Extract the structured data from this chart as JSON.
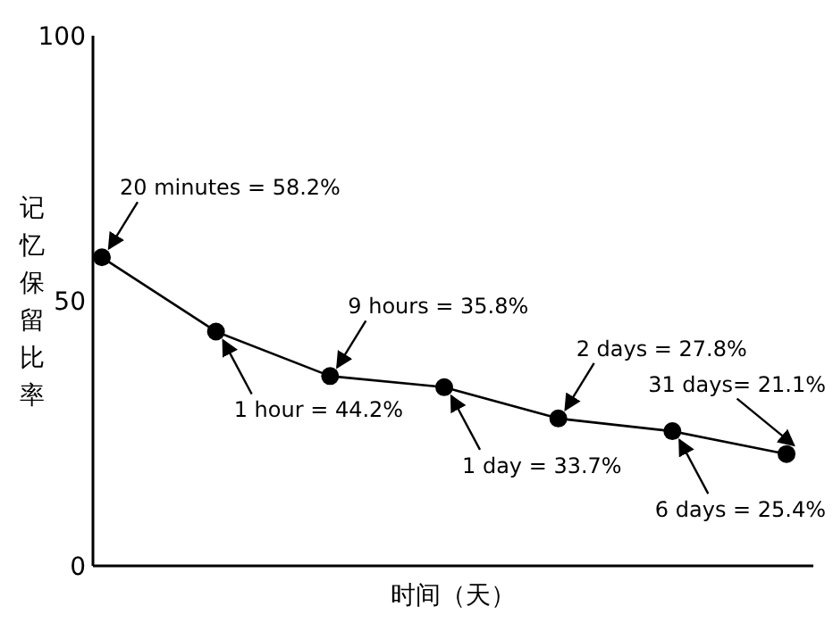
{
  "chart_data": {
    "type": "line",
    "xlabel": "时间（天）",
    "ylabel": "记忆保留比率",
    "categories": [
      null,
      null,
      null,
      null,
      null,
      null,
      null
    ],
    "values": [
      58.2,
      44.2,
      35.8,
      33.7,
      27.8,
      25.4,
      21.1
    ],
    "color": "#000000",
    "marker": "circle",
    "line_style": "solid",
    "ylim": [
      0,
      100
    ],
    "yticks": [
      0,
      50,
      100
    ],
    "grid": false,
    "annotations": [
      "20 minutes = 58.2%",
      "1 hour = 44.2%",
      "9 hours = 35.8%",
      "1 day = 33.7%",
      "2 days = 27.8%",
      "6 days = 25.4%",
      "31 days= 21.1%"
    ]
  }
}
